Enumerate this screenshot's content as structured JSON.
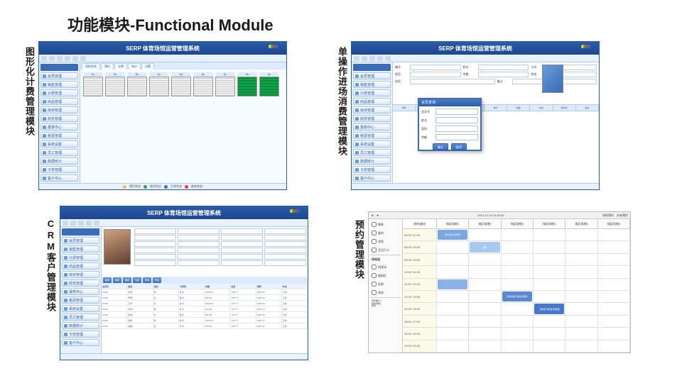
{
  "title": "功能模块-Functional Module",
  "modules": {
    "m1": {
      "label": "图形化计费管理模块"
    },
    "m2": {
      "label": "单操作进场消费管理模块"
    },
    "m3": {
      "label": "CRM客户管理模块"
    },
    "m4": {
      "label": "预约管理模块"
    }
  },
  "serp_title": "SERP 体育场馆运营管理系统",
  "logo_colors": [
    "#f9d23c",
    "#2aa84a",
    "#e83a3a",
    "#3a6cb8"
  ],
  "sidebar_items": [
    "会员管理",
    "销售管理",
    "计费管理",
    "商品管理",
    "库存管理",
    "财务管理",
    "报表中心",
    "租赁管理",
    "系统设置",
    "员工管理",
    "数据统计",
    "卡务管理",
    "客户中心"
  ],
  "tabs": [
    "场地状态",
    "预约",
    "计费",
    "统计",
    "设置"
  ],
  "courts": [
    {
      "name": "场1",
      "state": "idle"
    },
    {
      "name": "场2",
      "state": "idle"
    },
    {
      "name": "场3",
      "state": "idle"
    },
    {
      "name": "场4",
      "state": "idle"
    },
    {
      "name": "场5",
      "state": "idle"
    },
    {
      "name": "场6",
      "state": "idle"
    },
    {
      "name": "场7",
      "state": "idle"
    },
    {
      "name": "场8",
      "state": "busy"
    },
    {
      "name": "场9",
      "state": "busy"
    }
  ],
  "status": [
    {
      "color": "#f0c040",
      "text": "预约状态"
    },
    {
      "color": "#2aa84a",
      "text": "使用状态"
    },
    {
      "color": "#3a6cb8",
      "text": "正常状态"
    },
    {
      "color": "#e83a3a",
      "text": "维修状态"
    }
  ],
  "popup": {
    "title": "会员查询",
    "labels": [
      "会员号",
      "姓名",
      "类别",
      "余额"
    ],
    "ok": "确认",
    "cancel": "取消"
  },
  "form_labels": [
    "编号",
    "姓名",
    "卡号",
    "类型",
    "余额",
    "状态",
    "电话",
    "备注"
  ],
  "grid_cols": [
    "编号",
    "项目",
    "时间",
    "数量",
    "单价",
    "金额",
    "状态",
    "操作员",
    "备注"
  ],
  "crm_cols": [
    "会员号",
    "姓名",
    "性别",
    "卡类型",
    "余额",
    "电话",
    "到期",
    "状态"
  ],
  "crm_tabs": [
    "基本信息",
    "消费记录",
    "充值记录",
    "积分",
    "备注"
  ],
  "crm_btns": [
    "新增",
    "编辑",
    "删除",
    "充值",
    "查询",
    "导出"
  ],
  "crm_rows": [
    [
      "10001",
      "张伟",
      "男",
      "金卡",
      "1250.00",
      "138****",
      "2025-06",
      "正常"
    ],
    [
      "10002",
      "李娜",
      "女",
      "银卡",
      "680.00",
      "139****",
      "2025-03",
      "正常"
    ],
    [
      "10003",
      "王芳",
      "女",
      "金卡",
      "2100.00",
      "137****",
      "2025-08",
      "正常"
    ],
    [
      "10004",
      "刘洋",
      "男",
      "普卡",
      "150.00",
      "136****",
      "2024-12",
      "正常"
    ],
    [
      "10005",
      "陈静",
      "女",
      "银卡",
      "890.00",
      "135****",
      "2025-05",
      "正常"
    ],
    [
      "10006",
      "杨帆",
      "男",
      "金卡",
      "1650.00",
      "134****",
      "2025-07",
      "正常"
    ],
    [
      "10007",
      "赵敏",
      "女",
      "普卡",
      "320.00",
      "133****",
      "2025-01",
      "正常"
    ]
  ],
  "sched": {
    "date_hdr": "2014-12-24 15:20:00",
    "left_hdr": "全选/取消",
    "side": [
      "教练",
      "器材",
      "课程",
      "会员打卡",
      "场地组",
      "网球场",
      "器械区",
      "私教",
      "其他"
    ],
    "side_bottom": "预定确认了\n场地/器材\n锁场",
    "cols": [
      "场地/器材",
      "场区场地1",
      "场区场地2",
      "场区场地3",
      "场区场地4",
      "场区场地5",
      "场区场地6"
    ],
    "right_hdr": [
      "场地预约",
      "外来预约"
    ],
    "times": [
      "05:00~07:00",
      "08:00~09:00",
      "09:00~10:00",
      "10:00~11:00",
      "11:00~13:00",
      "13:00~14:00",
      "14:00~15:00",
      "15:00~17:00",
      "18:00~19:00",
      "19:00~21:00"
    ],
    "events": [
      {
        "row": 0,
        "col": 1,
        "color": "#7aa8e0",
        "text": "会员活动 羽毛球"
      },
      {
        "row": 1,
        "col": 2,
        "color": "#a8c8f0",
        "text": "预约"
      },
      {
        "row": 4,
        "col": 1,
        "color": "#8ab0e8",
        "text": ""
      },
      {
        "row": 5,
        "col": 3,
        "color": "#5a88d0",
        "text": "综合训练 羽毛球 网球"
      },
      {
        "row": 6,
        "col": 4,
        "color": "#4a78c8",
        "text": "王教练 羽毛球 私教课"
      }
    ]
  }
}
